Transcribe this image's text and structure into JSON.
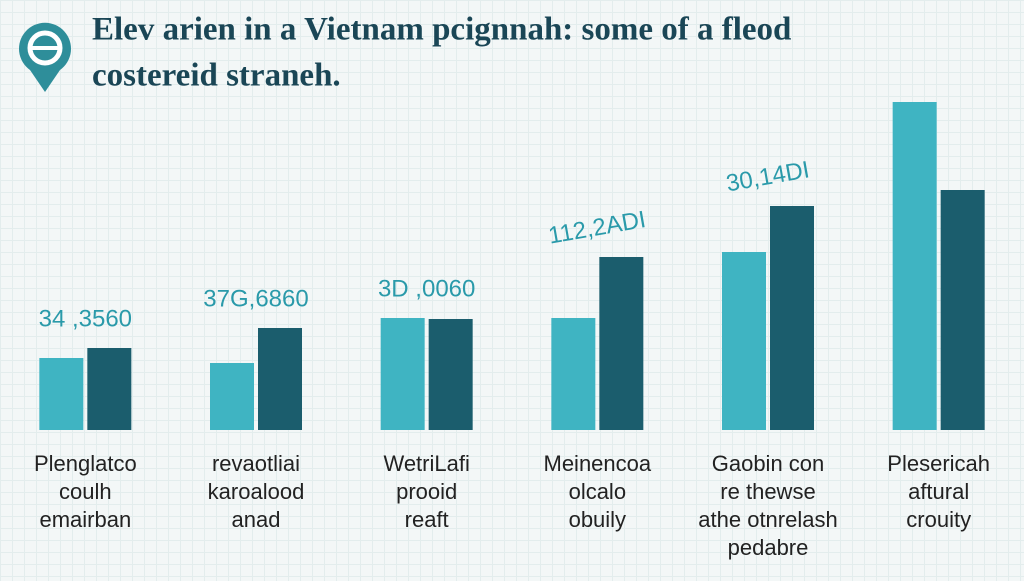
{
  "chart_data": {
    "type": "bar",
    "title": [
      "Elev arien in a Vietnam pcignnah: some of a fleod",
      "costereid straneh."
    ],
    "categories": [
      [
        "Plenglatco",
        "coulh",
        "emairban"
      ],
      [
        "revaotliai",
        "karoalood",
        "anad"
      ],
      [
        "WetriLafi",
        "prooid",
        "reaft"
      ],
      [
        "Meinencoa",
        "olcalo",
        "obuily"
      ],
      [
        "Gaobin con",
        "re thewse",
        "athe otnrelash",
        "pedabre"
      ],
      [
        "Plesericah",
        "aftural",
        "crouity"
      ]
    ],
    "series": [
      {
        "color": "#3fb4c2",
        "values": [
          72,
          67,
          112,
          112,
          178,
          328
        ]
      },
      {
        "color": "#1b5d6d",
        "values": [
          82,
          102,
          111,
          173,
          224,
          240
        ]
      }
    ],
    "annotations": [
      "34 ,3560",
      "37G,6860",
      "3D ,0060",
      "112,2ADI",
      "30,14DI"
    ],
    "ylim": [
      0,
      330
    ]
  }
}
